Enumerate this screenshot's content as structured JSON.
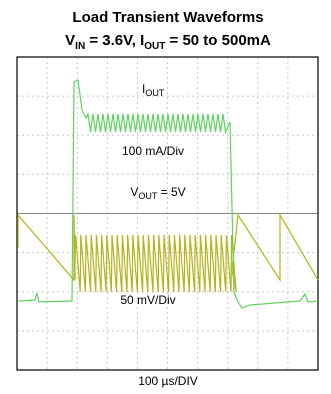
{
  "header": {
    "title_line1": "Load Transient Waveforms",
    "title_line2": [
      "V",
      "IN",
      " = 3.6V, I",
      "OUT",
      " = 50 to 500mA"
    ]
  },
  "scope": {
    "current_label": [
      "I",
      "OUT"
    ],
    "current_scale": "100 mA/Div",
    "voltage_label": [
      "V",
      "OUT",
      " = 5V"
    ],
    "voltage_scale": "50 mV/Div",
    "time_scale": "100 µs/DIV"
  }
}
